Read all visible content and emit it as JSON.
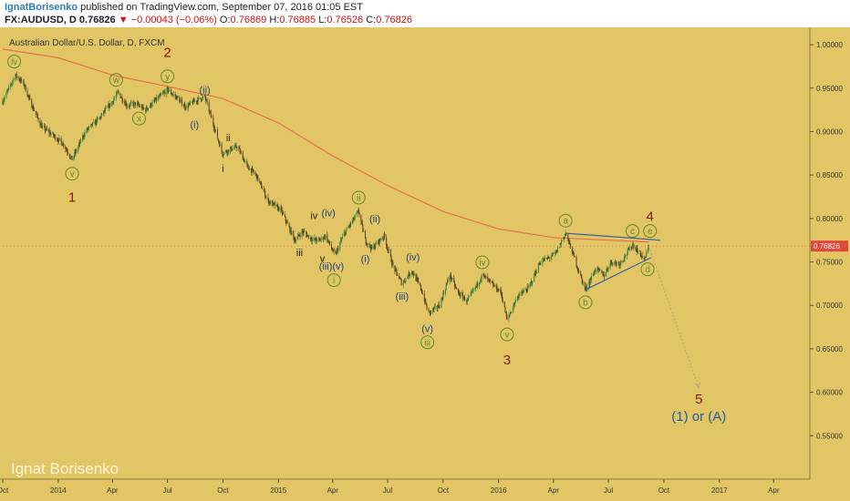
{
  "header": {
    "author": "IgnatBorisenko",
    "published_text": " published on TradingView.com, September 07, 2016 01:05 EST",
    "symbol": "FX:AUDUSD, D",
    "last": " 0.76826 ",
    "change_arrow": "▼",
    "change": " −0.00043 (−0.06%) ",
    "o_label": "O:",
    "o_val": "0.76869 ",
    "h_label": "H:",
    "h_val": "0.76885 ",
    "l_label": "L:",
    "l_val": "0.76526 ",
    "c_label": "C:",
    "c_val": "0.76826"
  },
  "chart_data": {
    "type": "candlestick",
    "title": "Australian Dollar/U.S. Dollar, D, FXCM",
    "watermark": "Ignat Borisenko",
    "ylim": [
      0.5,
      1.02
    ],
    "x_range": [
      "2013-10-01",
      "2017-05-31"
    ],
    "y_ticks": [
      "1.00000",
      "0.95000",
      "0.90000",
      "0.85000",
      "0.80000",
      "0.75000",
      "0.70000",
      "0.65000",
      "0.60000",
      "0.55000"
    ],
    "y_tick_values": [
      1.0,
      0.95,
      0.9,
      0.85,
      0.8,
      0.75,
      0.7,
      0.65,
      0.6,
      0.55
    ],
    "x_ticks": [
      {
        "label": "Oct",
        "date": "2013-10-01"
      },
      {
        "label": "2014",
        "date": "2014-01-01"
      },
      {
        "label": "Apr",
        "date": "2014-04-01"
      },
      {
        "label": "Jul",
        "date": "2014-07-01"
      },
      {
        "label": "Oct",
        "date": "2014-10-01"
      },
      {
        "label": "2015",
        "date": "2015-01-01"
      },
      {
        "label": "Apr",
        "date": "2015-04-01"
      },
      {
        "label": "Jul",
        "date": "2015-07-01"
      },
      {
        "label": "Oct",
        "date": "2015-10-01"
      },
      {
        "label": "2016",
        "date": "2016-01-01"
      },
      {
        "label": "Apr",
        "date": "2016-04-01"
      },
      {
        "label": "Jul",
        "date": "2016-07-01"
      },
      {
        "label": "Oct",
        "date": "2016-10-01"
      },
      {
        "label": "2017",
        "date": "2017-01-01"
      },
      {
        "label": "Apr",
        "date": "2017-04-01"
      }
    ],
    "last_price_label": "0.76826",
    "price_path": [
      [
        "2013-10-01",
        0.935
      ],
      [
        "2013-10-22",
        0.965
      ],
      [
        "2013-11-05",
        0.955
      ],
      [
        "2013-11-15",
        0.935
      ],
      [
        "2013-12-05",
        0.905
      ],
      [
        "2013-12-25",
        0.895
      ],
      [
        "2014-01-10",
        0.885
      ],
      [
        "2014-01-24",
        0.868
      ],
      [
        "2014-02-15",
        0.9
      ],
      [
        "2014-03-10",
        0.915
      ],
      [
        "2014-04-01",
        0.935
      ],
      [
        "2014-04-10",
        0.945
      ],
      [
        "2014-04-25",
        0.93
      ],
      [
        "2014-05-10",
        0.932
      ],
      [
        "2014-05-25",
        0.925
      ],
      [
        "2014-06-10",
        0.935
      ],
      [
        "2014-07-01",
        0.948
      ],
      [
        "2014-07-15",
        0.94
      ],
      [
        "2014-08-01",
        0.928
      ],
      [
        "2014-08-15",
        0.935
      ],
      [
        "2014-09-01",
        0.94
      ],
      [
        "2014-09-10",
        0.92
      ],
      [
        "2014-09-30",
        0.875
      ],
      [
        "2014-10-15",
        0.88
      ],
      [
        "2014-10-25",
        0.883
      ],
      [
        "2014-11-10",
        0.86
      ],
      [
        "2014-11-25",
        0.85
      ],
      [
        "2014-12-15",
        0.82
      ],
      [
        "2015-01-05",
        0.81
      ],
      [
        "2015-01-28",
        0.775
      ],
      [
        "2015-02-10",
        0.785
      ],
      [
        "2015-02-28",
        0.775
      ],
      [
        "2015-03-10",
        0.775
      ],
      [
        "2015-03-20",
        0.78
      ],
      [
        "2015-04-05",
        0.757
      ],
      [
        "2015-04-18",
        0.78
      ],
      [
        "2015-05-14",
        0.808
      ],
      [
        "2015-05-25",
        0.775
      ],
      [
        "2015-06-05",
        0.765
      ],
      [
        "2015-06-25",
        0.78
      ],
      [
        "2015-07-10",
        0.745
      ],
      [
        "2015-07-25",
        0.725
      ],
      [
        "2015-08-10",
        0.74
      ],
      [
        "2015-08-25",
        0.72
      ],
      [
        "2015-09-07",
        0.691
      ],
      [
        "2015-09-25",
        0.7
      ],
      [
        "2015-10-12",
        0.735
      ],
      [
        "2015-10-25",
        0.715
      ],
      [
        "2015-11-10",
        0.705
      ],
      [
        "2015-11-25",
        0.722
      ],
      [
        "2015-12-05",
        0.735
      ],
      [
        "2015-12-20",
        0.725
      ],
      [
        "2016-01-05",
        0.715
      ],
      [
        "2016-01-15",
        0.683
      ],
      [
        "2016-02-01",
        0.71
      ],
      [
        "2016-02-20",
        0.72
      ],
      [
        "2016-03-10",
        0.75
      ],
      [
        "2016-03-25",
        0.755
      ],
      [
        "2016-04-05",
        0.76
      ],
      [
        "2016-04-21",
        0.783
      ],
      [
        "2016-05-03",
        0.76
      ],
      [
        "2016-05-15",
        0.735
      ],
      [
        "2016-05-24",
        0.718
      ],
      [
        "2016-06-10",
        0.742
      ],
      [
        "2016-06-24",
        0.735
      ],
      [
        "2016-07-05",
        0.75
      ],
      [
        "2016-07-20",
        0.748
      ],
      [
        "2016-08-10",
        0.77
      ],
      [
        "2016-08-22",
        0.76
      ],
      [
        "2016-08-30",
        0.752
      ],
      [
        "2016-09-06",
        0.768
      ]
    ],
    "moving_average": [
      [
        "2013-10-01",
        0.995
      ],
      [
        "2014-01-01",
        0.985
      ],
      [
        "2014-04-01",
        0.965
      ],
      [
        "2014-07-01",
        0.952
      ],
      [
        "2014-10-01",
        0.938
      ],
      [
        "2015-01-01",
        0.91
      ],
      [
        "2015-04-01",
        0.872
      ],
      [
        "2015-07-01",
        0.838
      ],
      [
        "2015-10-01",
        0.808
      ],
      [
        "2016-01-01",
        0.788
      ],
      [
        "2016-04-01",
        0.778
      ],
      [
        "2016-07-01",
        0.775
      ],
      [
        "2016-09-06",
        0.773
      ]
    ],
    "trendlines": [
      {
        "name": "triangle-upper",
        "from": [
          "2016-04-21",
          0.783
        ],
        "to": [
          "2016-09-25",
          0.775
        ],
        "style": "solid"
      },
      {
        "name": "triangle-lower",
        "from": [
          "2016-05-24",
          0.718
        ],
        "to": [
          "2016-09-10",
          0.755
        ],
        "style": "solid"
      },
      {
        "name": "projection",
        "from": [
          "2016-09-06",
          0.768
        ],
        "to": [
          "2016-11-28",
          0.605
        ],
        "style": "dotted"
      }
    ],
    "wave_labels": [
      {
        "text": "iv",
        "date": "2013-10-20",
        "price": 0.9805,
        "style": "circle"
      },
      {
        "text": "v",
        "date": "2014-01-24",
        "price": 0.8515,
        "style": "circle"
      },
      {
        "text": "1",
        "date": "2014-01-24",
        "price": 0.825,
        "style": "big"
      },
      {
        "text": "w",
        "date": "2014-04-07",
        "price": 0.9595,
        "style": "circle"
      },
      {
        "text": "x",
        "date": "2014-05-15",
        "price": 0.915,
        "style": "circle"
      },
      {
        "text": "y",
        "date": "2014-07-01",
        "price": 0.9635,
        "style": "circle"
      },
      {
        "text": "2",
        "date": "2014-07-01",
        "price": 0.9915,
        "style": "big"
      },
      {
        "text": "(ii)",
        "date": "2014-09-01",
        "price": 0.948,
        "style": "paren"
      },
      {
        "text": "(i)",
        "date": "2014-08-15",
        "price": 0.908,
        "style": "paren"
      },
      {
        "text": "ii",
        "date": "2014-10-10",
        "price": 0.893,
        "style": "roman"
      },
      {
        "text": "i",
        "date": "2014-10-01",
        "price": 0.858,
        "style": "roman"
      },
      {
        "text": "iii",
        "date": "2015-02-05",
        "price": 0.761,
        "style": "roman"
      },
      {
        "text": "iv",
        "date": "2015-03-01",
        "price": 0.8035,
        "style": "roman"
      },
      {
        "text": "(iv)",
        "date": "2015-03-25",
        "price": 0.8065,
        "style": "paren"
      },
      {
        "text": "v",
        "date": "2015-03-15",
        "price": 0.754,
        "style": "roman"
      },
      {
        "text": "(iii)(v)",
        "date": "2015-03-30",
        "price": 0.745,
        "style": "paren"
      },
      {
        "text": "i",
        "date": "2015-04-03",
        "price": 0.729,
        "style": "circle"
      },
      {
        "text": "ii",
        "date": "2015-05-14",
        "price": 0.824,
        "style": "circle"
      },
      {
        "text": "(ii)",
        "date": "2015-06-10",
        "price": 0.7995,
        "style": "paren"
      },
      {
        "text": "(i)",
        "date": "2015-05-25",
        "price": 0.7535,
        "style": "paren"
      },
      {
        "text": "(iv)",
        "date": "2015-08-12",
        "price": 0.7555,
        "style": "paren"
      },
      {
        "text": "(iii)",
        "date": "2015-07-25",
        "price": 0.7105,
        "style": "paren"
      },
      {
        "text": "(v)",
        "date": "2015-09-05",
        "price": 0.6735,
        "style": "paren"
      },
      {
        "text": "iii",
        "date": "2015-09-05",
        "price": 0.6575,
        "style": "circle"
      },
      {
        "text": "iv",
        "date": "2015-12-05",
        "price": 0.7495,
        "style": "circle"
      },
      {
        "text": "v",
        "date": "2016-01-15",
        "price": 0.6665,
        "style": "circle"
      },
      {
        "text": "3",
        "date": "2016-01-15",
        "price": 0.6375,
        "style": "big"
      },
      {
        "text": "a",
        "date": "2016-04-21",
        "price": 0.7975,
        "style": "circle"
      },
      {
        "text": "b",
        "date": "2016-05-24",
        "price": 0.7035,
        "style": "circle"
      },
      {
        "text": "c",
        "date": "2016-08-10",
        "price": 0.7855,
        "style": "circle"
      },
      {
        "text": "e",
        "date": "2016-09-08",
        "price": 0.7855,
        "style": "circle"
      },
      {
        "text": "4",
        "date": "2016-09-08",
        "price": 0.8025,
        "style": "big"
      },
      {
        "text": "d",
        "date": "2016-09-04",
        "price": 0.7415,
        "style": "circle"
      },
      {
        "text": "5",
        "date": "2016-11-28",
        "price": 0.5925,
        "style": "big"
      },
      {
        "text": "(1) or (A)",
        "date": "2016-11-28",
        "price": 0.5725,
        "style": "target"
      }
    ],
    "colors": {
      "background": "#e2c665",
      "candle_up": "#2f7d3a",
      "candle_down": "#5a3a20",
      "moving_average": "#e8704a",
      "trendline": "#3a5fa8",
      "projection": "#b9a57a",
      "label_circle": "#5d8a2a",
      "label_paren": "#1f3f7a",
      "label_roman": "#2a1a10",
      "label_big": "#7a1a10",
      "label_target": "#1f5fa0",
      "last_price": "#e0483a"
    }
  }
}
